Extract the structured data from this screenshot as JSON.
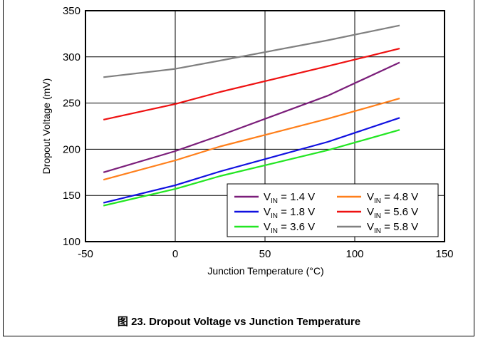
{
  "chart_data": {
    "type": "line",
    "title": "",
    "xlabel": "Junction Temperature (°C)",
    "ylabel": "Dropout Voltage (mV)",
    "xlim": [
      -50,
      150
    ],
    "ylim": [
      100,
      350
    ],
    "xticks": [
      "-50",
      "0",
      "50",
      "100",
      "150"
    ],
    "yticks": [
      "100",
      "150",
      "200",
      "250",
      "300",
      "350"
    ],
    "grid": true,
    "legend_position": "bottom-right",
    "series": [
      {
        "name_main": "V",
        "name_sub": "IN",
        "name_rest": " = 1.4 V",
        "color": "#7b1e7a",
        "x": [
          -40,
          0,
          25,
          85,
          125
        ],
        "y": [
          175,
          198,
          215,
          258,
          294
        ]
      },
      {
        "name_main": "V",
        "name_sub": "IN",
        "name_rest": " = 1.8 V",
        "color": "#1010e0",
        "x": [
          -40,
          0,
          25,
          85,
          125
        ],
        "y": [
          142,
          161,
          176,
          208,
          234
        ]
      },
      {
        "name_main": "V",
        "name_sub": "IN",
        "name_rest": " = 3.6 V",
        "color": "#22e622",
        "x": [
          -40,
          0,
          25,
          85,
          125
        ],
        "y": [
          139,
          157,
          171,
          199,
          221
        ]
      },
      {
        "name_main": "V",
        "name_sub": "IN",
        "name_rest": " = 4.8 V",
        "color": "#ff7f1a",
        "x": [
          -40,
          0,
          25,
          85,
          125
        ],
        "y": [
          167,
          188,
          203,
          233,
          255
        ]
      },
      {
        "name_main": "V",
        "name_sub": "IN",
        "name_rest": " = 5.6 V",
        "color": "#ee1111",
        "x": [
          -40,
          0,
          25,
          85,
          125
        ],
        "y": [
          232,
          249,
          262,
          290,
          309
        ]
      },
      {
        "name_main": "V",
        "name_sub": "IN",
        "name_rest": " = 5.8 V",
        "color": "#808080",
        "x": [
          -40,
          0,
          25,
          85,
          125
        ],
        "y": [
          278,
          287,
          296,
          318,
          334
        ]
      }
    ]
  },
  "caption": "图 23.  Dropout Voltage vs Junction Temperature"
}
